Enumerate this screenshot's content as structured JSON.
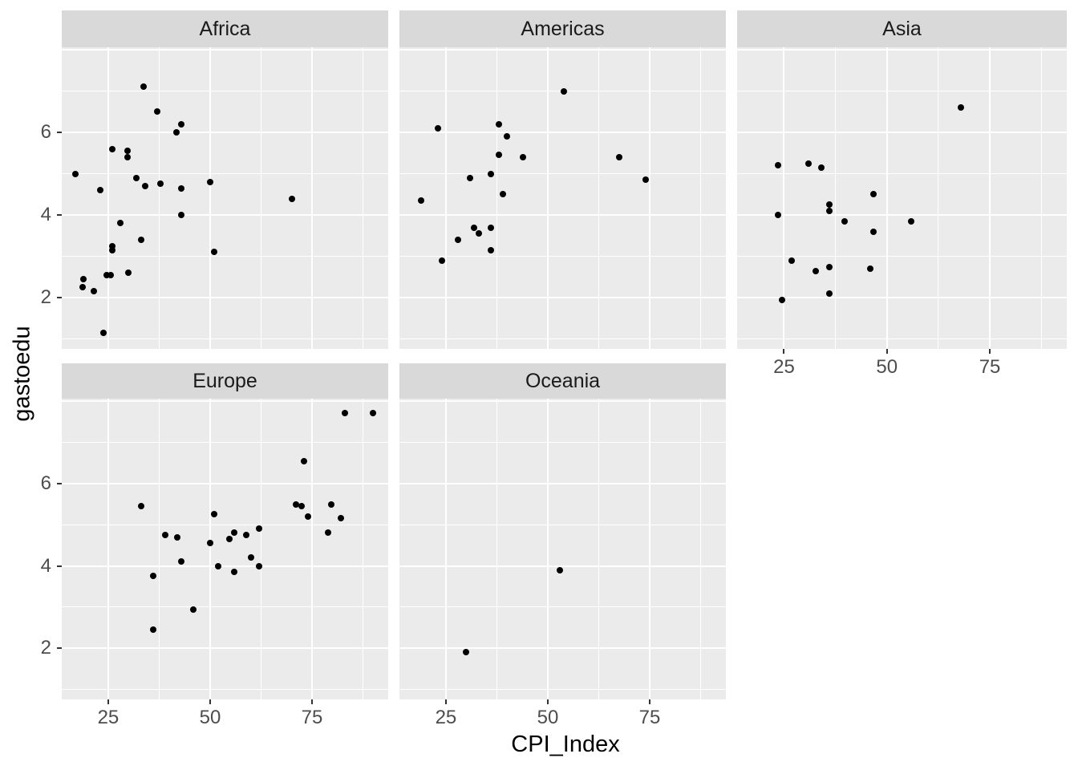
{
  "chart_data": {
    "type": "scatter",
    "title": "",
    "xlabel": "CPI_Index",
    "ylabel": "gastoedu",
    "facet_layout": {
      "rows": 2,
      "cols": 3,
      "grid": "on",
      "legend": "none"
    },
    "x_axis": {
      "domain": [
        13.6,
        93.7
      ],
      "major_ticks": [
        25,
        50,
        75
      ],
      "major_tick_labels": [
        "25",
        "50",
        "75"
      ],
      "minor_ticks": [
        37.5,
        62.5,
        87.5
      ]
    },
    "y_axis": {
      "domain": [
        0.76,
        8.06
      ],
      "major_ticks": [
        2,
        4,
        6,
        8
      ],
      "labeled_ticks": [
        6,
        4,
        2
      ],
      "labeled_tick_labels": [
        "6",
        "4",
        "2"
      ],
      "minor_ticks": [
        1,
        3,
        5,
        7
      ]
    },
    "theme": {
      "panel_bg": "#EBEBEB",
      "strip_bg": "#D9D9D9",
      "strip_text": "#1A1A1A",
      "grid_color": "#FFFFFF",
      "tick_mark": "#333333",
      "tick_label": "#4D4D4D",
      "axis_title": "#000000",
      "point_color": "#000000"
    },
    "facets": [
      {
        "name": "Africa",
        "row": 0,
        "col": 0,
        "points": [
          [
            17,
            5.0
          ],
          [
            19,
            2.45
          ],
          [
            18.7,
            2.25
          ],
          [
            21.5,
            2.15
          ],
          [
            23,
            4.6
          ],
          [
            23.8,
            1.15
          ],
          [
            24.7,
            2.55
          ],
          [
            25.7,
            2.55
          ],
          [
            26,
            5.6
          ],
          [
            26,
            3.25
          ],
          [
            26,
            3.15
          ],
          [
            28,
            3.8
          ],
          [
            29.8,
            5.55
          ],
          [
            29.8,
            5.4
          ],
          [
            30,
            2.6
          ],
          [
            32,
            4.9
          ],
          [
            33,
            3.4
          ],
          [
            33.7,
            7.1
          ],
          [
            34,
            4.7
          ],
          [
            37,
            6.5
          ],
          [
            37.8,
            4.75
          ],
          [
            41.8,
            6.0
          ],
          [
            43,
            6.2
          ],
          [
            43,
            4.65
          ],
          [
            43,
            4.0
          ],
          [
            50,
            4.8
          ],
          [
            51,
            3.1
          ],
          [
            70,
            4.4
          ]
        ]
      },
      {
        "name": "Americas",
        "row": 0,
        "col": 1,
        "points": [
          [
            19,
            4.35
          ],
          [
            23,
            6.1
          ],
          [
            24,
            2.9
          ],
          [
            28,
            3.4
          ],
          [
            31,
            4.9
          ],
          [
            32,
            3.7
          ],
          [
            33,
            3.55
          ],
          [
            36,
            5.0
          ],
          [
            36,
            3.7
          ],
          [
            36,
            3.15
          ],
          [
            38,
            6.2
          ],
          [
            38,
            5.45
          ],
          [
            40,
            5.9
          ],
          [
            39,
            4.5
          ],
          [
            44,
            5.4
          ],
          [
            54,
            7.0
          ],
          [
            67.5,
            5.4
          ],
          [
            74,
            4.85
          ]
        ]
      },
      {
        "name": "Asia",
        "row": 0,
        "col": 2,
        "points": [
          [
            23.6,
            5.2
          ],
          [
            23.6,
            4.0
          ],
          [
            24.6,
            1.95
          ],
          [
            26.8,
            2.9
          ],
          [
            31,
            5.25
          ],
          [
            32.7,
            2.65
          ],
          [
            34,
            5.15
          ],
          [
            36,
            4.25
          ],
          [
            36,
            4.1
          ],
          [
            36,
            2.75
          ],
          [
            36,
            2.1
          ],
          [
            39.8,
            3.85
          ],
          [
            45.9,
            2.7
          ],
          [
            46.7,
            4.5
          ],
          [
            46.7,
            3.6
          ],
          [
            55.8,
            3.85
          ],
          [
            68,
            6.6
          ]
        ]
      },
      {
        "name": "Europe",
        "row": 1,
        "col": 0,
        "points": [
          [
            33,
            5.45
          ],
          [
            36,
            3.75
          ],
          [
            36,
            2.45
          ],
          [
            39,
            4.75
          ],
          [
            42,
            4.7
          ],
          [
            43,
            4.1
          ],
          [
            45.9,
            2.95
          ],
          [
            50,
            4.55
          ],
          [
            51,
            5.25
          ],
          [
            52,
            4.0
          ],
          [
            54.8,
            4.65
          ],
          [
            56,
            4.8
          ],
          [
            56,
            3.85
          ],
          [
            58.9,
            4.75
          ],
          [
            60,
            4.2
          ],
          [
            62,
            4.9
          ],
          [
            62,
            4.0
          ],
          [
            71,
            5.5
          ],
          [
            72.5,
            5.45
          ],
          [
            73,
            6.55
          ],
          [
            74,
            5.2
          ],
          [
            79,
            4.8
          ],
          [
            79.7,
            5.5
          ],
          [
            82,
            5.15
          ],
          [
            83,
            7.7
          ],
          [
            90,
            7.7
          ]
        ]
      },
      {
        "name": "Oceania",
        "row": 1,
        "col": 1,
        "points": [
          [
            30,
            1.9
          ],
          [
            53,
            3.9
          ]
        ]
      }
    ]
  }
}
